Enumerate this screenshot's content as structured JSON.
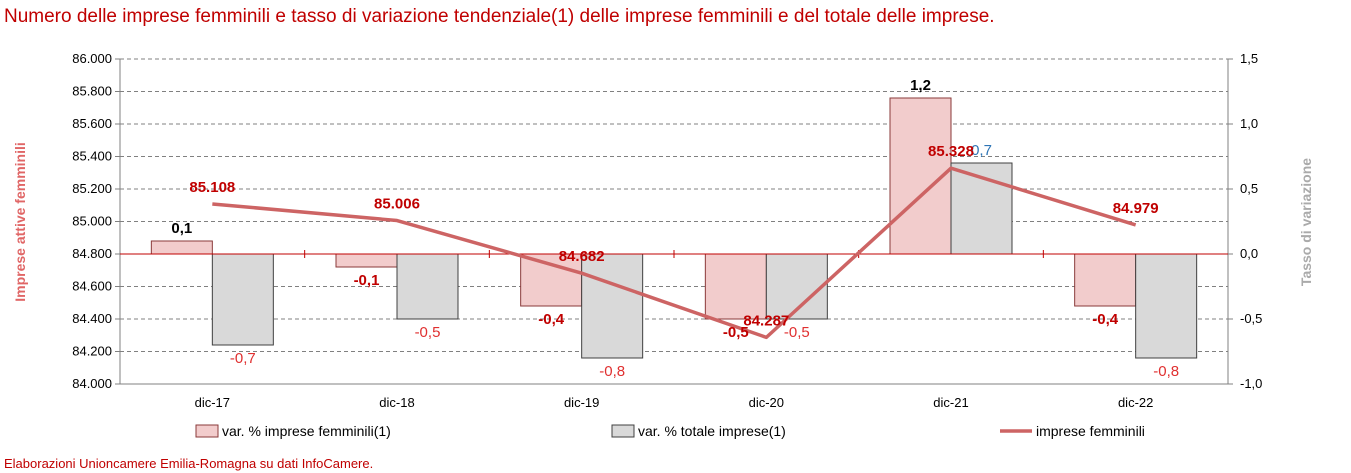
{
  "title": "Numero delle imprese femminili e tasso di variazione tendenziale(1) delle imprese femminili e del totale delle imprese.",
  "footer": "Elaborazioni Unioncamere Emilia-Romagna su dati InfoCamere.",
  "colors": {
    "title": "#c00000",
    "femminili_bar": "#f2cccc",
    "femminili_bar_stroke": "#8a3a3a",
    "totale_bar": "#d9d9d9",
    "totale_bar_stroke": "#404040",
    "line": "#cd6464",
    "zero_line": "#c00000",
    "label_femminili": "#c00000",
    "label_totale_neg": "#e03030",
    "label_totale_pos": "#2e75b6",
    "grid": "#808080"
  },
  "chart_data": {
    "type": "bar",
    "categories": [
      "dic-17",
      "dic-18",
      "dic-19",
      "dic-20",
      "dic-21",
      "dic-22"
    ],
    "series": [
      {
        "name": "var. % imprese femminili(1)",
        "axis": "right",
        "kind": "bar",
        "values": [
          0.1,
          -0.1,
          -0.4,
          -0.5,
          1.2,
          -0.4
        ],
        "labels": [
          "0,1",
          "-0,1",
          "-0,4",
          "-0,5",
          "1,2",
          "-0,4"
        ]
      },
      {
        "name": "var. % totale imprese(1)",
        "axis": "right",
        "kind": "bar",
        "values": [
          -0.7,
          -0.5,
          -0.8,
          -0.5,
          0.7,
          -0.8
        ],
        "labels": [
          "-0,7",
          "-0,5",
          "-0,8",
          "-0,5",
          "0,7",
          "-0,8"
        ]
      },
      {
        "name": "imprese femminili",
        "axis": "left",
        "kind": "line",
        "values": [
          85108,
          85006,
          84682,
          84287,
          85328,
          84979
        ],
        "labels": [
          "85.108",
          "85.006",
          "84.682",
          "84.287",
          "85.328",
          "84.979"
        ]
      }
    ],
    "y_left": {
      "label": "Imprese attive femminili",
      "lim": [
        84000,
        86000
      ],
      "ticks": [
        "84.000",
        "84.200",
        "84.400",
        "84.600",
        "84.800",
        "85.000",
        "85.200",
        "85.400",
        "85.600",
        "85.800",
        "86.000"
      ]
    },
    "y_right": {
      "label": "Tasso di variazione",
      "lim": [
        -1.0,
        1.5
      ],
      "ticks": [
        "-1,0",
        "-0,5",
        "0,0",
        "0,5",
        "1,0",
        "1,5"
      ]
    },
    "grid": true,
    "legend": "bottom"
  }
}
